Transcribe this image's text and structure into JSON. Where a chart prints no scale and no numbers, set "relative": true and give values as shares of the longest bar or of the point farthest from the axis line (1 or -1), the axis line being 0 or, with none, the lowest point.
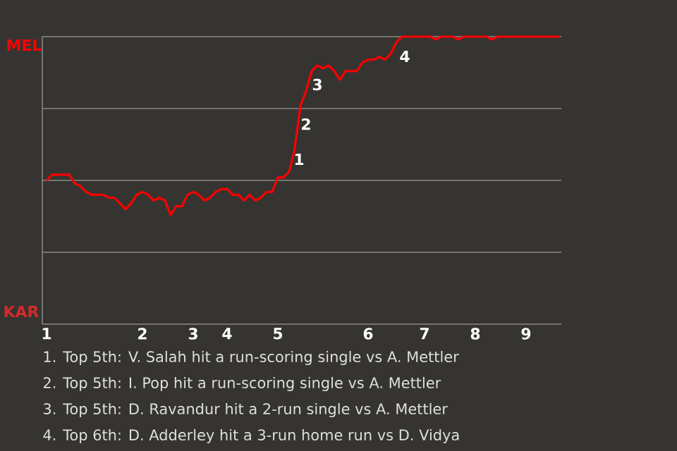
{
  "chart_data": {
    "type": "line",
    "color": "#ff0000",
    "line_style": "solid",
    "grid": "y",
    "relative": true,
    "categories": [
      "1",
      null,
      null,
      null,
      null,
      null,
      null,
      null,
      null,
      null,
      null,
      null,
      null,
      null,
      null,
      null,
      null,
      "2",
      null,
      null,
      null,
      null,
      null,
      null,
      null,
      null,
      "3",
      null,
      null,
      null,
      null,
      null,
      "4",
      null,
      null,
      null,
      null,
      null,
      null,
      null,
      null,
      "5",
      null,
      null,
      null,
      null,
      null,
      null,
      null,
      null,
      null,
      null,
      null,
      null,
      null,
      null,
      null,
      "6",
      null,
      null,
      null,
      null,
      null,
      null,
      null,
      null,
      null,
      "7",
      null,
      null,
      null,
      null,
      null,
      null,
      null,
      null,
      "8",
      null,
      null,
      null,
      null,
      null,
      null,
      null,
      null,
      "9",
      null,
      null,
      null,
      null,
      null,
      null
    ],
    "values": [
      0.5,
      0.52,
      0.52,
      0.52,
      0.52,
      0.49,
      0.48,
      0.46,
      0.45,
      0.45,
      0.45,
      0.44,
      0.44,
      0.42,
      0.4,
      0.42,
      0.45,
      0.46,
      0.45,
      0.43,
      0.44,
      0.43,
      0.38,
      0.41,
      0.41,
      0.45,
      0.46,
      0.45,
      0.43,
      0.44,
      0.46,
      0.47,
      0.47,
      0.45,
      0.45,
      0.43,
      0.45,
      0.43,
      0.44,
      0.46,
      0.46,
      0.51,
      0.51,
      0.53,
      0.61,
      0.76,
      0.81,
      0.88,
      0.9,
      0.89,
      0.9,
      0.88,
      0.85,
      0.88,
      0.88,
      0.88,
      0.91,
      0.92,
      0.92,
      0.93,
      0.92,
      0.94,
      0.98,
      1,
      1,
      1,
      1,
      1,
      1,
      0.99,
      1,
      1,
      1,
      0.99,
      1,
      1,
      1,
      1,
      1,
      0.99,
      1,
      1,
      1,
      1,
      1,
      1,
      1,
      1,
      1,
      1,
      1,
      1
    ],
    "annotations": [
      "MEL",
      "KAR",
      "1",
      "2",
      "3",
      "4",
      "1. Top 5th: V. Salah hit a run-scoring single vs A. Mettler",
      "2. Top 5th: I. Pop hit a run-scoring single vs A. Mettler",
      "3. Top 5th: D. Ravandur hit a 2-run single vs A. Mettler",
      "4. Top 6th: D. Adderley hit a 3-run home run vs D. Vidya"
    ]
  }
}
